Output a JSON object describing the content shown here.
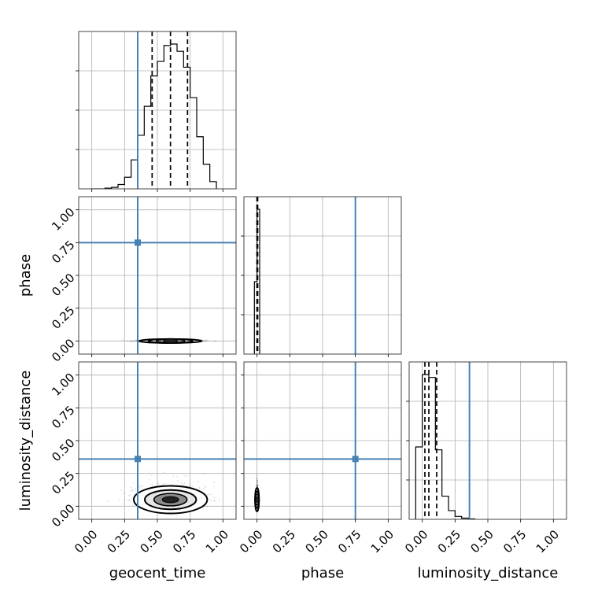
{
  "chart_data": {
    "type": "corner",
    "parameters": [
      "geocent_time",
      "phase",
      "luminosity_distance"
    ],
    "axis_labels": [
      "geocent_time",
      "phase",
      "luminosity_distance"
    ],
    "range": [
      -0.1,
      1.1
    ],
    "tick_values": [
      0.0,
      0.25,
      0.5,
      0.75,
      1.0
    ],
    "tick_labels": [
      "0.00",
      "0.25",
      "0.50",
      "0.75",
      "1.00"
    ],
    "grid": true,
    "colors": {
      "truth": "#4682b4",
      "hist": "#000000",
      "quantiles": "#000000"
    },
    "truths": {
      "geocent_time": 0.35,
      "phase": 0.75,
      "luminosity_distance": 0.36
    },
    "quantiles": {
      "geocent_time": [
        0.46,
        0.6,
        0.73
      ],
      "phase": [
        0.0,
        0.0,
        0.005
      ],
      "luminosity_distance": [
        0.02,
        0.05,
        0.11
      ]
    },
    "histograms": {
      "geocent_time": {
        "bin_edges": [
          0.0,
          0.05,
          0.1,
          0.15,
          0.2,
          0.25,
          0.3,
          0.35,
          0.4,
          0.45,
          0.5,
          0.55,
          0.6,
          0.65,
          0.7,
          0.75,
          0.8,
          0.85,
          0.9,
          0.95
        ],
        "counts": [
          0,
          0,
          0.005,
          0.01,
          0.03,
          0.08,
          0.2,
          0.37,
          0.57,
          0.78,
          0.88,
          0.99,
          1.0,
          0.95,
          0.84,
          0.63,
          0.36,
          0.17,
          0.05
        ]
      },
      "phase": {
        "bin_edges": [
          -0.02,
          0.0,
          0.02
        ],
        "counts": [
          0.5,
          1.0
        ]
      },
      "luminosity_distance": {
        "bin_edges": [
          -0.05,
          0.0,
          0.05,
          0.1,
          0.15,
          0.2,
          0.25,
          0.3,
          0.35,
          0.4
        ],
        "counts": [
          0.5,
          1.0,
          0.98,
          0.48,
          0.16,
          0.06,
          0.02,
          0.008,
          0.003
        ]
      }
    },
    "panels_2d": [
      {
        "x": "geocent_time",
        "y": "phase",
        "center": [
          0.6,
          0.0
        ],
        "spread": [
          0.12,
          0.004
        ]
      },
      {
        "x": "geocent_time",
        "y": "luminosity_distance",
        "center": [
          0.6,
          0.05
        ],
        "spread": [
          0.14,
          0.07
        ]
      },
      {
        "x": "phase",
        "y": "luminosity_distance",
        "center": [
          0.0,
          0.05
        ],
        "spread": [
          0.003,
          0.06
        ]
      }
    ]
  }
}
